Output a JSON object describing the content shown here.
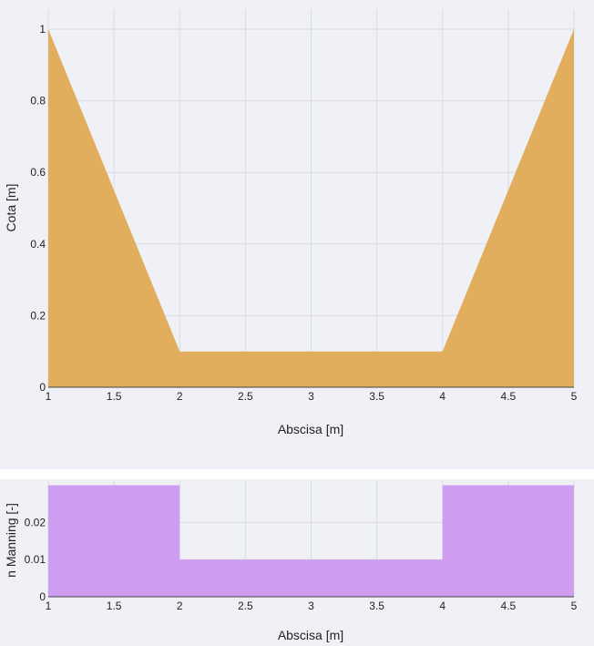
{
  "chart_data": [
    {
      "type": "area",
      "xlabel": "Abscisa [m]",
      "ylabel": "Cota [m]",
      "xlim": [
        1,
        5
      ],
      "ylim": [
        0,
        1
      ],
      "grid": true,
      "xticks": [
        "1",
        "1.5",
        "2",
        "2.5",
        "3",
        "3.5",
        "4",
        "4.5",
        "5"
      ],
      "yticks": [
        "0",
        "0.2",
        "0.4",
        "0.6",
        "0.8",
        "1"
      ],
      "x": [
        1,
        2,
        4,
        5
      ],
      "y": [
        1,
        0.1,
        0.1,
        1
      ],
      "color": "#e0ae5c"
    },
    {
      "type": "area",
      "xlabel": "Abscisa [m]",
      "ylabel": "n Manning [-]",
      "xlim": [
        1,
        5
      ],
      "ylim": [
        0,
        0.03
      ],
      "grid": true,
      "xticks": [
        "1",
        "1.5",
        "2",
        "2.5",
        "3",
        "3.5",
        "4",
        "4.5",
        "5"
      ],
      "yticks": [
        "0",
        "0.01",
        "0.02"
      ],
      "x": [
        1,
        2,
        2,
        4,
        4,
        5
      ],
      "y": [
        0.03,
        0.03,
        0.01,
        0.01,
        0.03,
        0.03
      ],
      "color": "#cf9ef0"
    }
  ]
}
